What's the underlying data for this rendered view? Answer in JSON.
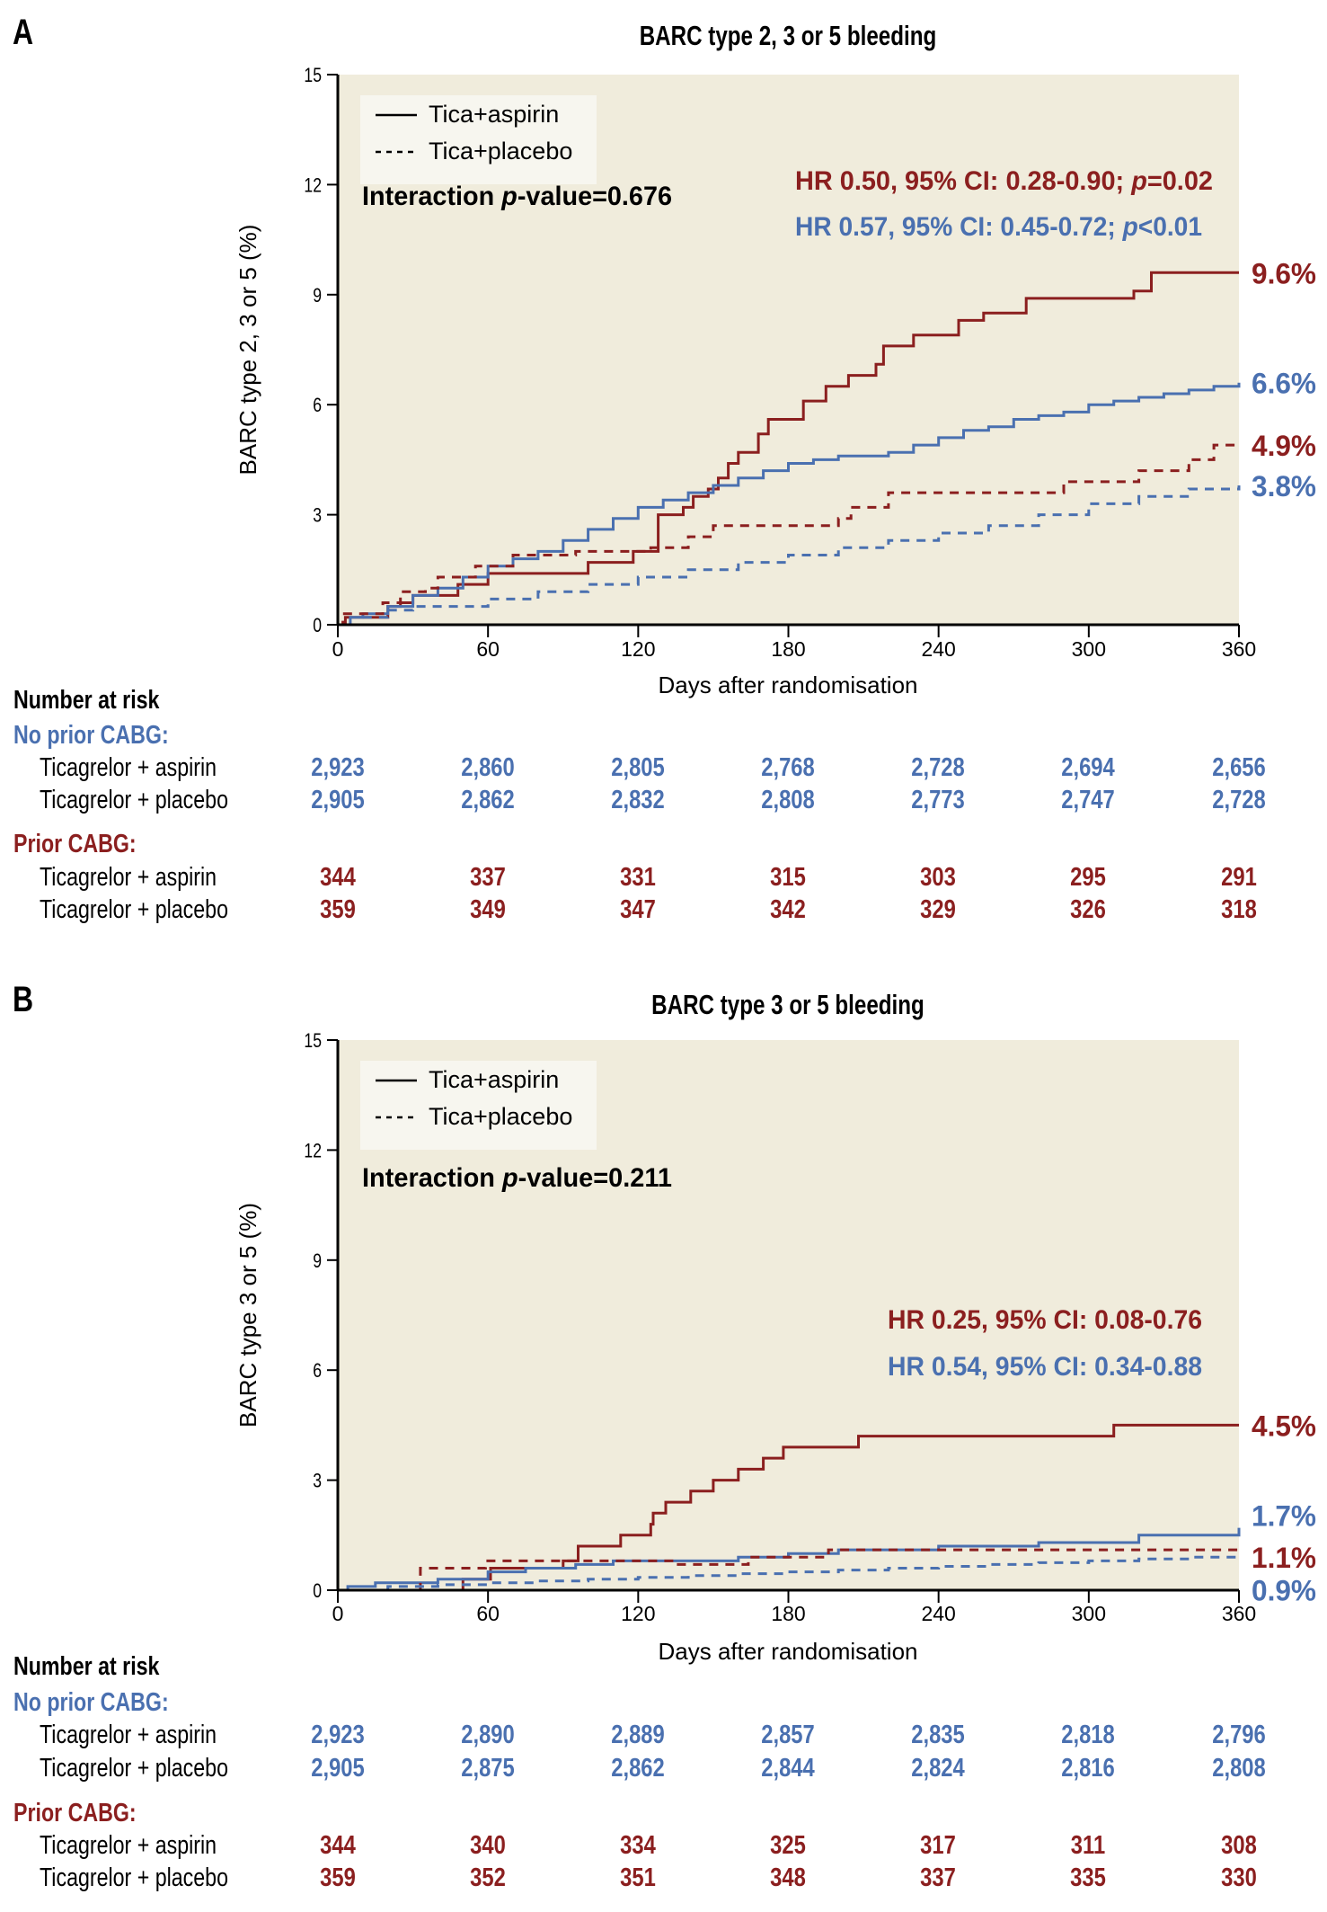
{
  "colors": {
    "no_prior_cabg": "#4a70b0",
    "prior_cabg": "#8b1f1f",
    "plot_bg": "#f0ecdc",
    "legend_bg": "#f7f6ef"
  },
  "chart_data": [
    {
      "type": "line",
      "panel": "A",
      "title": "BARC type 2, 3 or 5 bleeding",
      "xlabel": "Days after randomisation",
      "ylabel": "BARC type 2, 3 or 5 (%)",
      "xlim": [
        0,
        360
      ],
      "ylim": [
        0,
        15
      ],
      "xticks": [
        0,
        60,
        120,
        180,
        240,
        300,
        360
      ],
      "yticks": [
        0,
        3,
        6,
        9,
        12,
        15
      ],
      "legend": {
        "placement": "top-left",
        "entries": [
          {
            "label": "Tica+aspirin",
            "style": "solid"
          },
          {
            "label": "Tica+placebo",
            "style": "dashed"
          }
        ]
      },
      "annotations": {
        "interaction": {
          "prefix": "Interaction ",
          "p": "p",
          "suffix": "-value=0.676"
        },
        "hr_prior": {
          "text": "HR 0.50, 95% CI: 0.28-0.90; ",
          "p": "p",
          "tail": "=0.02"
        },
        "hr_noprior": {
          "text": "HR 0.57, 95% CI: 0.45-0.72; ",
          "p": "p",
          "tail": "<0.01"
        }
      },
      "end_labels": [
        {
          "text": "9.6%",
          "value": 9.6,
          "group": "prior"
        },
        {
          "text": "6.6%",
          "value": 6.6,
          "group": "noprior"
        },
        {
          "text": "4.9%",
          "value": 4.9,
          "group": "prior"
        },
        {
          "text": "3.8%",
          "value": 3.8,
          "group": "noprior"
        }
      ],
      "series": [
        {
          "name": "Prior CABG - Tica+aspirin",
          "group": "prior",
          "style": "solid",
          "x": [
            0,
            3,
            5,
            20,
            25,
            30,
            35,
            48,
            55,
            60,
            93,
            100,
            110,
            118,
            128,
            138,
            142,
            148,
            152,
            156,
            160,
            168,
            172,
            186,
            195,
            204,
            215,
            218,
            230,
            248,
            258,
            275,
            318,
            325,
            360
          ],
          "y": [
            0,
            0.2,
            0.2,
            0.5,
            0.6,
            0.8,
            0.8,
            1.1,
            1.1,
            1.4,
            1.4,
            1.7,
            1.7,
            2.0,
            3.0,
            3.2,
            3.5,
            3.7,
            4.0,
            4.4,
            4.7,
            5.2,
            5.6,
            6.1,
            6.5,
            6.8,
            7.1,
            7.6,
            7.9,
            8.3,
            8.5,
            8.9,
            9.1,
            9.6,
            9.6
          ]
        },
        {
          "name": "No prior CABG - Tica+aspirin",
          "group": "noprior",
          "style": "solid",
          "x": [
            0,
            5,
            10,
            20,
            30,
            40,
            50,
            60,
            70,
            80,
            90,
            100,
            110,
            120,
            130,
            140,
            150,
            160,
            170,
            180,
            190,
            200,
            210,
            220,
            230,
            240,
            250,
            260,
            270,
            280,
            290,
            300,
            310,
            320,
            330,
            340,
            350,
            360
          ],
          "y": [
            0,
            0.2,
            0.3,
            0.5,
            0.8,
            1.0,
            1.3,
            1.6,
            1.8,
            2.0,
            2.3,
            2.6,
            2.9,
            3.2,
            3.4,
            3.6,
            3.8,
            4.0,
            4.2,
            4.4,
            4.5,
            4.6,
            4.6,
            4.7,
            4.9,
            5.1,
            5.3,
            5.4,
            5.6,
            5.7,
            5.8,
            6.0,
            6.1,
            6.2,
            6.3,
            6.4,
            6.5,
            6.6
          ]
        },
        {
          "name": "Prior CABG - Tica+placebo",
          "group": "prior",
          "style": "dashed",
          "x": [
            0,
            2,
            18,
            25,
            35,
            40,
            55,
            70,
            95,
            110,
            118,
            125,
            140,
            150,
            155,
            200,
            205,
            220,
            285,
            290,
            320,
            340,
            350,
            360
          ],
          "y": [
            0,
            0.3,
            0.6,
            0.9,
            1.0,
            1.3,
            1.6,
            1.9,
            2.0,
            2.0,
            2.0,
            2.1,
            2.4,
            2.7,
            2.7,
            2.9,
            3.2,
            3.6,
            3.6,
            3.9,
            4.2,
            4.5,
            4.9,
            4.9
          ]
        },
        {
          "name": "No prior CABG - Tica+placebo",
          "group": "noprior",
          "style": "dashed",
          "x": [
            0,
            10,
            20,
            30,
            40,
            60,
            80,
            100,
            120,
            140,
            160,
            180,
            200,
            220,
            240,
            260,
            280,
            300,
            320,
            340,
            360
          ],
          "y": [
            0,
            0.2,
            0.4,
            0.5,
            0.5,
            0.7,
            0.9,
            1.1,
            1.3,
            1.5,
            1.7,
            1.9,
            2.1,
            2.3,
            2.5,
            2.7,
            3.0,
            3.3,
            3.5,
            3.7,
            3.8
          ]
        }
      ],
      "number_at_risk": {
        "header": "Number at risk",
        "groups": [
          {
            "label": "No prior CABG:",
            "color": "#4a70b0",
            "rows": [
              {
                "label": "Ticagrelor + aspirin",
                "values": [
                  "2,923",
                  "2,860",
                  "2,805",
                  "2,768",
                  "2,728",
                  "2,694",
                  "2,656"
                ]
              },
              {
                "label": "Ticagrelor + placebo",
                "values": [
                  "2,905",
                  "2,862",
                  "2,832",
                  "2,808",
                  "2,773",
                  "2,747",
                  "2,728"
                ]
              }
            ]
          },
          {
            "label": "Prior CABG:",
            "color": "#8b1f1f",
            "rows": [
              {
                "label": "Ticagrelor + aspirin",
                "values": [
                  "344",
                  "337",
                  "331",
                  "315",
                  "303",
                  "295",
                  "291"
                ]
              },
              {
                "label": "Ticagrelor + placebo",
                "values": [
                  "359",
                  "349",
                  "347",
                  "342",
                  "329",
                  "326",
                  "318"
                ]
              }
            ]
          }
        ]
      }
    },
    {
      "type": "line",
      "panel": "B",
      "title": "BARC type 3 or 5 bleeding",
      "xlabel": "Days after randomisation",
      "ylabel": "BARC type 3 or 5 (%)",
      "xlim": [
        0,
        360
      ],
      "ylim": [
        0,
        15
      ],
      "xticks": [
        0,
        60,
        120,
        180,
        240,
        300,
        360
      ],
      "yticks": [
        0,
        3,
        6,
        9,
        12,
        15
      ],
      "legend": {
        "placement": "top-left",
        "entries": [
          {
            "label": "Tica+aspirin",
            "style": "solid"
          },
          {
            "label": "Tica+placebo",
            "style": "dashed"
          }
        ]
      },
      "annotations": {
        "interaction": {
          "prefix": "Interaction ",
          "p": "p",
          "suffix": "-value=0.211"
        },
        "hr_prior": {
          "text": "HR 0.25, 95% CI: 0.08-0.76",
          "p": "",
          "tail": ""
        },
        "hr_noprior": {
          "text": "HR 0.54, 95% CI: 0.34-0.88",
          "p": "",
          "tail": ""
        }
      },
      "end_labels": [
        {
          "text": "4.5%",
          "value": 4.5,
          "group": "prior"
        },
        {
          "text": "1.7%",
          "value": 1.7,
          "group": "noprior"
        },
        {
          "text": "1.1%",
          "value": 1.1,
          "group": "prior"
        },
        {
          "text": "0.9%",
          "value": 0.9,
          "group": "noprior"
        }
      ],
      "series": [
        {
          "name": "Prior CABG - Tica+aspirin",
          "group": "prior",
          "style": "solid",
          "x": [
            0,
            50,
            61,
            90,
            96,
            113,
            125,
            126,
            131,
            141,
            150,
            160,
            170,
            178,
            208,
            226,
            310,
            360
          ],
          "y": [
            0,
            0.3,
            0.6,
            0.8,
            1.2,
            1.5,
            1.8,
            2.1,
            2.4,
            2.7,
            3.0,
            3.3,
            3.6,
            3.9,
            4.2,
            4.2,
            4.5,
            4.5
          ]
        },
        {
          "name": "No prior CABG - Tica+aspirin",
          "group": "noprior",
          "style": "solid",
          "x": [
            0,
            4,
            15,
            40,
            60,
            75,
            95,
            110,
            140,
            160,
            180,
            200,
            240,
            280,
            320,
            360
          ],
          "y": [
            0,
            0.1,
            0.2,
            0.3,
            0.5,
            0.6,
            0.7,
            0.8,
            0.8,
            0.9,
            1.0,
            1.1,
            1.2,
            1.3,
            1.5,
            1.7
          ]
        },
        {
          "name": "Prior CABG - Tica+placebo",
          "group": "prior",
          "style": "dashed",
          "x": [
            0,
            33,
            59,
            135,
            164,
            196,
            360
          ],
          "y": [
            0,
            0.6,
            0.8,
            0.7,
            0.9,
            1.1,
            1.1
          ]
        },
        {
          "name": "No prior CABG - Tica+placebo",
          "group": "noprior",
          "style": "dashed",
          "x": [
            0,
            20,
            40,
            60,
            80,
            100,
            120,
            140,
            160,
            180,
            200,
            220,
            240,
            260,
            280,
            300,
            320,
            340,
            360
          ],
          "y": [
            0,
            0.1,
            0.15,
            0.2,
            0.25,
            0.3,
            0.35,
            0.4,
            0.45,
            0.5,
            0.55,
            0.6,
            0.65,
            0.7,
            0.75,
            0.8,
            0.85,
            0.9,
            0.9
          ]
        }
      ],
      "number_at_risk": {
        "header": "Number at risk",
        "groups": [
          {
            "label": "No prior CABG:",
            "color": "#4a70b0",
            "rows": [
              {
                "label": "Ticagrelor + aspirin",
                "values": [
                  "2,923",
                  "2,890",
                  "2,889",
                  "2,857",
                  "2,835",
                  "2,818",
                  "2,796"
                ]
              },
              {
                "label": "Ticagrelor + placebo",
                "values": [
                  "2,905",
                  "2,875",
                  "2,862",
                  "2,844",
                  "2,824",
                  "2,816",
                  "2,808"
                ]
              }
            ]
          },
          {
            "label": "Prior CABG:",
            "color": "#8b1f1f",
            "rows": [
              {
                "label": "Ticagrelor + aspirin",
                "values": [
                  "344",
                  "340",
                  "334",
                  "325",
                  "317",
                  "311",
                  "308"
                ]
              },
              {
                "label": "Ticagrelor + placebo",
                "values": [
                  "359",
                  "352",
                  "351",
                  "348",
                  "337",
                  "335",
                  "330"
                ]
              }
            ]
          }
        ]
      }
    }
  ]
}
